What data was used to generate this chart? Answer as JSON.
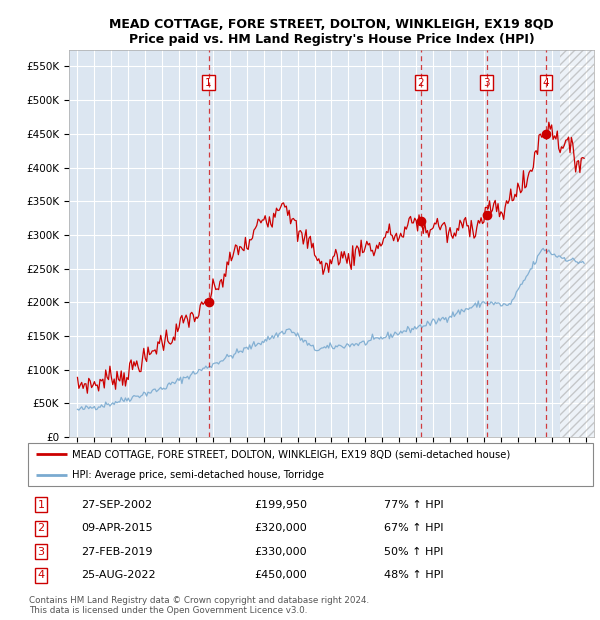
{
  "title": "MEAD COTTAGE, FORE STREET, DOLTON, WINKLEIGH, EX19 8QD",
  "subtitle": "Price paid vs. HM Land Registry's House Price Index (HPI)",
  "red_label": "MEAD COTTAGE, FORE STREET, DOLTON, WINKLEIGH, EX19 8QD (semi-detached house)",
  "blue_label": "HPI: Average price, semi-detached house, Torridge",
  "footer": "Contains HM Land Registry data © Crown copyright and database right 2024.\nThis data is licensed under the Open Government Licence v3.0.",
  "sales": [
    {
      "num": 1,
      "date": "27-SEP-2002",
      "price": 199950,
      "pct": "77%",
      "dir": "↑"
    },
    {
      "num": 2,
      "date": "09-APR-2015",
      "price": 320000,
      "pct": "67%",
      "dir": "↑"
    },
    {
      "num": 3,
      "date": "27-FEB-2019",
      "price": 330000,
      "pct": "50%",
      "dir": "↑"
    },
    {
      "num": 4,
      "date": "25-AUG-2022",
      "price": 450000,
      "pct": "48%",
      "dir": "↑"
    }
  ],
  "sale_dates_decimal": [
    2002.74,
    2015.27,
    2019.16,
    2022.65
  ],
  "sale_prices": [
    199950,
    320000,
    330000,
    450000
  ],
  "ylim": [
    0,
    575000
  ],
  "xlim_start": 1994.5,
  "xlim_end": 2025.5,
  "hatch_start": 2023.5,
  "yticks": [
    0,
    50000,
    100000,
    150000,
    200000,
    250000,
    300000,
    350000,
    400000,
    450000,
    500000,
    550000
  ],
  "ytick_labels": [
    "£0",
    "£50K",
    "£100K",
    "£150K",
    "£200K",
    "£250K",
    "£300K",
    "£350K",
    "£400K",
    "£450K",
    "£500K",
    "£550K"
  ],
  "background_color": "#dce6f1",
  "grid_color": "#ffffff",
  "red_color": "#cc0000",
  "blue_color": "#7aaad0",
  "hatch_color": "#bbbbbb"
}
